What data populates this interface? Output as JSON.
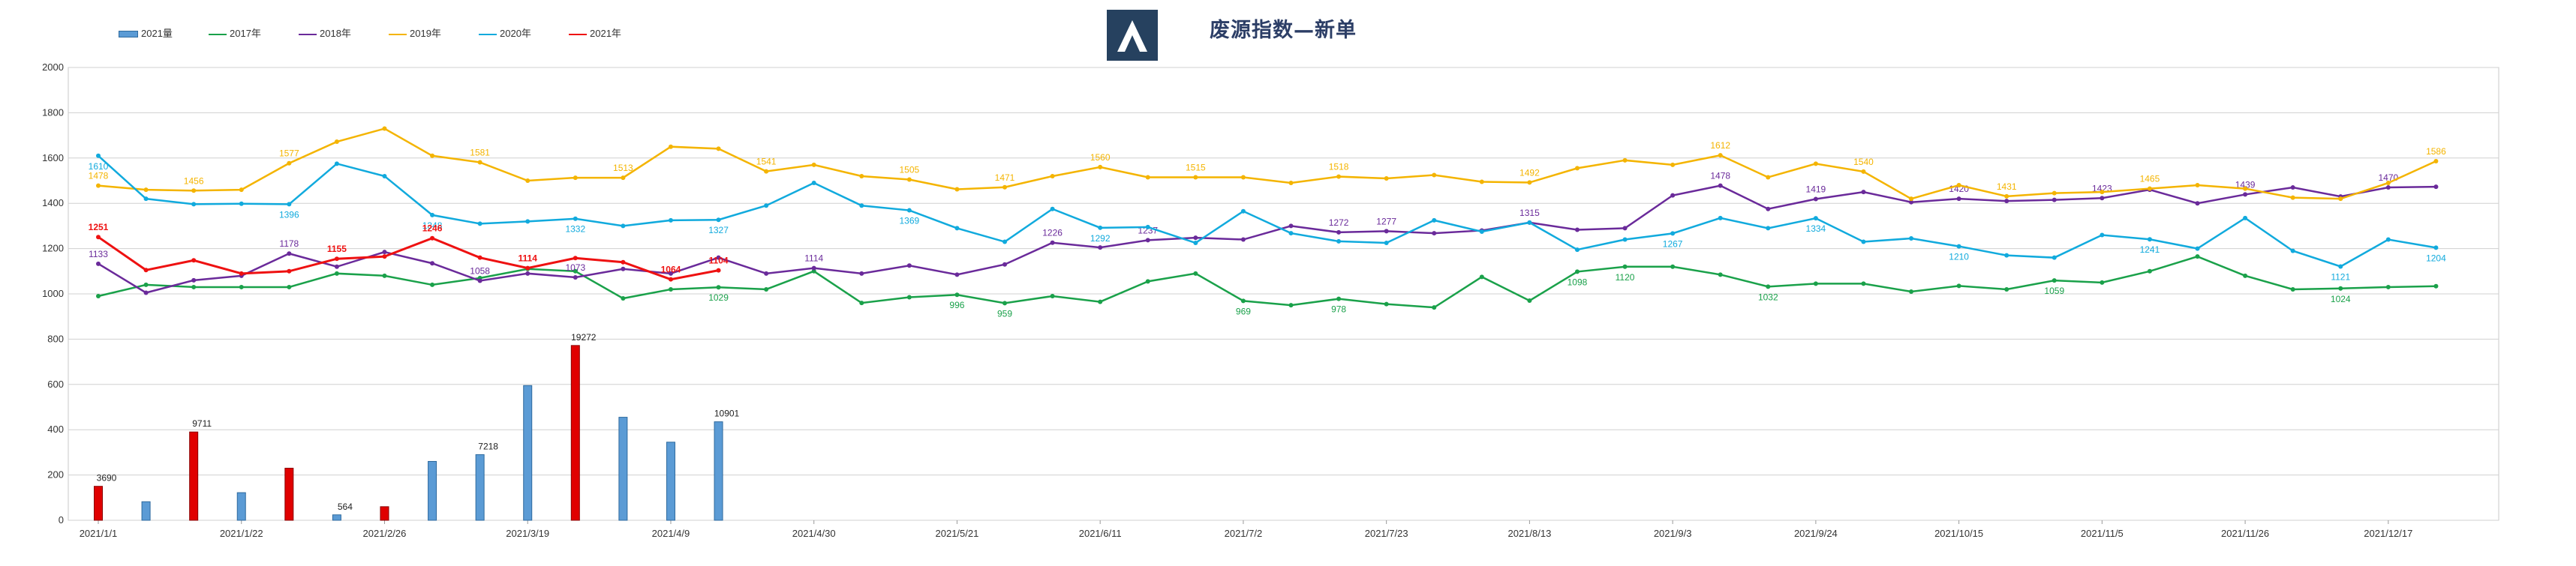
{
  "header": {
    "title": "废源指数—新单"
  },
  "colors": {
    "bar_blue": "#5b9bd5",
    "bar_red": "#e00000",
    "s2017": "#1aa14a",
    "s2018": "#6a2a9a",
    "s2019": "#f4b400",
    "s2020": "#11aadd",
    "s2021": "#ee1111"
  },
  "chart_data": {
    "type": "line",
    "title": "废源指数—新单",
    "ylim": [
      0,
      2000
    ],
    "yticks": [
      0,
      200,
      400,
      600,
      800,
      1000,
      1200,
      1400,
      1600,
      1800,
      2000
    ],
    "grid": true,
    "legend_position": "top-left",
    "x_tick_labels": [
      "2021/1/1",
      "2021/1/22",
      "2021/2/26",
      "2021/3/19",
      "2021/4/9",
      "2021/4/30",
      "2021/5/21",
      "2021/6/11",
      "2021/7/2",
      "2021/7/23",
      "2021/8/13",
      "2021/9/3",
      "2021/9/24",
      "2021/10/15",
      "2021/11/5",
      "2021/11/26",
      "2021/12/17"
    ],
    "legend": [
      "2021量",
      "2017年",
      "2018年",
      "2019年",
      "2020年",
      "2021年"
    ],
    "bars": {
      "name": "2021量",
      "values": [
        150,
        82,
        390,
        122,
        230,
        24,
        60,
        260,
        290,
        595,
        772,
        455,
        345,
        435
      ],
      "labels": {
        "0": "3690",
        "2": "9711",
        "5": "564",
        "8": "7218",
        "10": "19272",
        "13": "10901"
      }
    },
    "series": [
      {
        "name": "2017年",
        "values": [
          990,
          1040,
          1030,
          1030,
          1030,
          1090,
          1080,
          1040,
          1070,
          1110,
          1100,
          980,
          1020,
          1029,
          1020,
          1100,
          960,
          985,
          996,
          959,
          990,
          965,
          1055,
          1090,
          969,
          950,
          978,
          955,
          940,
          1075,
          970,
          1098,
          1120,
          1120,
          1085,
          1032,
          1045,
          1045,
          1010,
          1035,
          1020,
          1059,
          1050,
          1100,
          1165,
          1080,
          1020,
          1024,
          1030,
          1034
        ],
        "labels": {
          "13": "1029",
          "18": "996",
          "19": "959",
          "24": "969",
          "26": "978",
          "31": "1098",
          "32": "1120",
          "35": "1032",
          "41": "1059",
          "47": "1024"
        }
      },
      {
        "name": "2018年",
        "values": [
          1133,
          1005,
          1060,
          1080,
          1178,
          1120,
          1185,
          1135,
          1058,
          1090,
          1073,
          1110,
          1090,
          1160,
          1090,
          1114,
          1090,
          1125,
          1085,
          1130,
          1226,
          1205,
          1237,
          1248,
          1240,
          1300,
          1272,
          1277,
          1268,
          1280,
          1315,
          1283,
          1290,
          1435,
          1478,
          1375,
          1419,
          1450,
          1405,
          1420,
          1410,
          1415,
          1423,
          1460,
          1400,
          1439,
          1470,
          1430,
          1470,
          1473
        ],
        "labels": {
          "0": "1133",
          "4": "1178",
          "8": "1058",
          "10": "1073",
          "15": "1114",
          "20": "1226",
          "22": "1237",
          "26": "1272",
          "27": "1277",
          "30": "1315",
          "34": "1478",
          "36": "1419",
          "39": "1420",
          "42": "1423",
          "45": "1439",
          "48": "1470"
        }
      },
      {
        "name": "2019年",
        "values": [
          1478,
          1460,
          1456,
          1460,
          1577,
          1672,
          1730,
          1610,
          1581,
          1500,
          1513,
          1513,
          1650,
          1641,
          1541,
          1570,
          1520,
          1505,
          1462,
          1471,
          1520,
          1560,
          1515,
          1515,
          1515,
          1490,
          1518,
          1510,
          1525,
          1495,
          1492,
          1555,
          1590,
          1570,
          1612,
          1515,
          1575,
          1540,
          1420,
          1480,
          1431,
          1445,
          1450,
          1465,
          1480,
          1465,
          1425,
          1420,
          1490,
          1586
        ],
        "labels": {
          "0": "1478",
          "2": "1456",
          "4": "1577",
          "8": "1581",
          "11": "1513",
          "14": "1541",
          "17": "1505",
          "19": "1471",
          "21": "1560",
          "23": "1515",
          "26": "1518",
          "30": "1492",
          "34": "1612",
          "37": "1540",
          "40": "1431",
          "43": "1465",
          "49": "1586"
        }
      },
      {
        "name": "2020年",
        "values": [
          1610,
          1420,
          1396,
          1398,
          1396,
          1575,
          1520,
          1348,
          1310,
          1320,
          1332,
          1300,
          1325,
          1327,
          1390,
          1490,
          1390,
          1369,
          1290,
          1230,
          1375,
          1292,
          1295,
          1225,
          1365,
          1268,
          1232,
          1225,
          1325,
          1275,
          1315,
          1195,
          1240,
          1267,
          1335,
          1290,
          1334,
          1230,
          1245,
          1210,
          1170,
          1160,
          1260,
          1241,
          1200,
          1335,
          1190,
          1121,
          1240,
          1204
        ],
        "labels": {
          "0": "1610",
          "4": "1396",
          "7": "1348",
          "10": "1332",
          "13": "1327",
          "17": "1369",
          "21": "1292",
          "33": "1267",
          "36": "1334",
          "39": "1210",
          "43": "1241",
          "47": "1121",
          "49": "1204"
        }
      },
      {
        "name": "2021年",
        "values": [
          1251,
          1105,
          1148,
          1090,
          1100,
          1155,
          1165,
          1246,
          1160,
          1114,
          1158,
          1140,
          1064,
          1104
        ],
        "labels": {
          "0": "1251",
          "5": "1155",
          "7": "1246",
          "9": "1114",
          "12": "1064",
          "13": "1104"
        }
      }
    ]
  }
}
